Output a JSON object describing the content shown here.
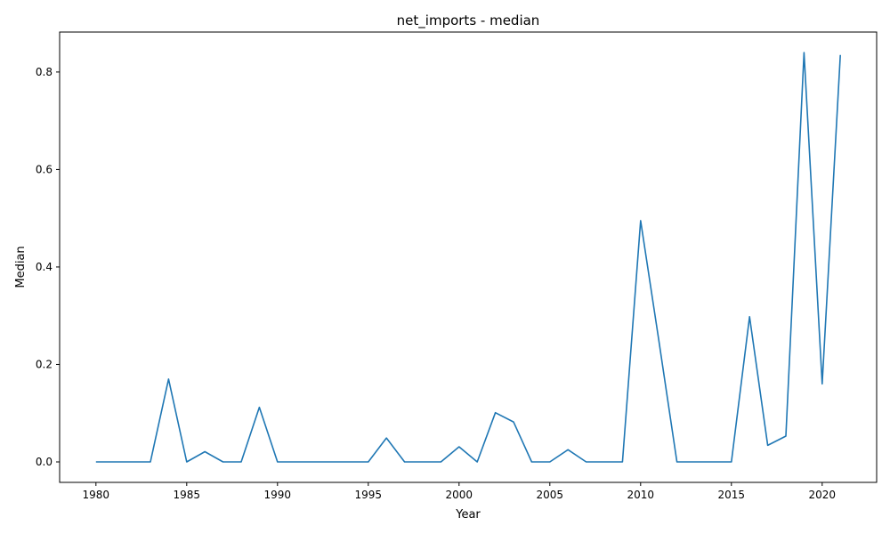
{
  "chart_data": {
    "type": "line",
    "title": "net_imports - median",
    "xlabel": "Year",
    "ylabel": "Median",
    "xlim": [
      1978,
      2023
    ],
    "ylim": [
      -0.042,
      0.882
    ],
    "grid": false,
    "xticks": [
      1980,
      1985,
      1990,
      1995,
      2000,
      2005,
      2010,
      2015,
      2020
    ],
    "yticks": [
      0.0,
      0.2,
      0.4,
      0.6,
      0.8
    ],
    "ytick_labels": [
      "0.0",
      "0.2",
      "0.4",
      "0.6",
      "0.8"
    ],
    "series": [
      {
        "color": "#1f77b4",
        "x": [
          1980,
          1981,
          1982,
          1983,
          1984,
          1985,
          1986,
          1987,
          1988,
          1989,
          1990,
          1991,
          1992,
          1993,
          1994,
          1995,
          1996,
          1997,
          1998,
          1999,
          2000,
          2001,
          2002,
          2003,
          2004,
          2005,
          2006,
          2007,
          2008,
          2009,
          2010,
          2011,
          2012,
          2013,
          2014,
          2015,
          2016,
          2017,
          2018,
          2019,
          2020,
          2021
        ],
        "y": [
          0.0,
          0.0,
          0.0,
          0.0,
          0.17,
          0.0,
          0.021,
          0.0,
          0.0,
          0.112,
          0.0,
          0.0,
          0.0,
          0.0,
          0.0,
          0.0,
          0.049,
          0.0,
          0.0,
          0.0,
          0.031,
          0.0,
          0.101,
          0.082,
          0.0,
          0.0,
          0.025,
          0.0,
          0.0,
          0.0,
          0.495,
          0.25,
          0.0,
          0.0,
          0.0,
          0.0,
          0.298,
          0.034,
          0.053,
          0.84,
          0.16,
          0.835
        ]
      }
    ]
  }
}
